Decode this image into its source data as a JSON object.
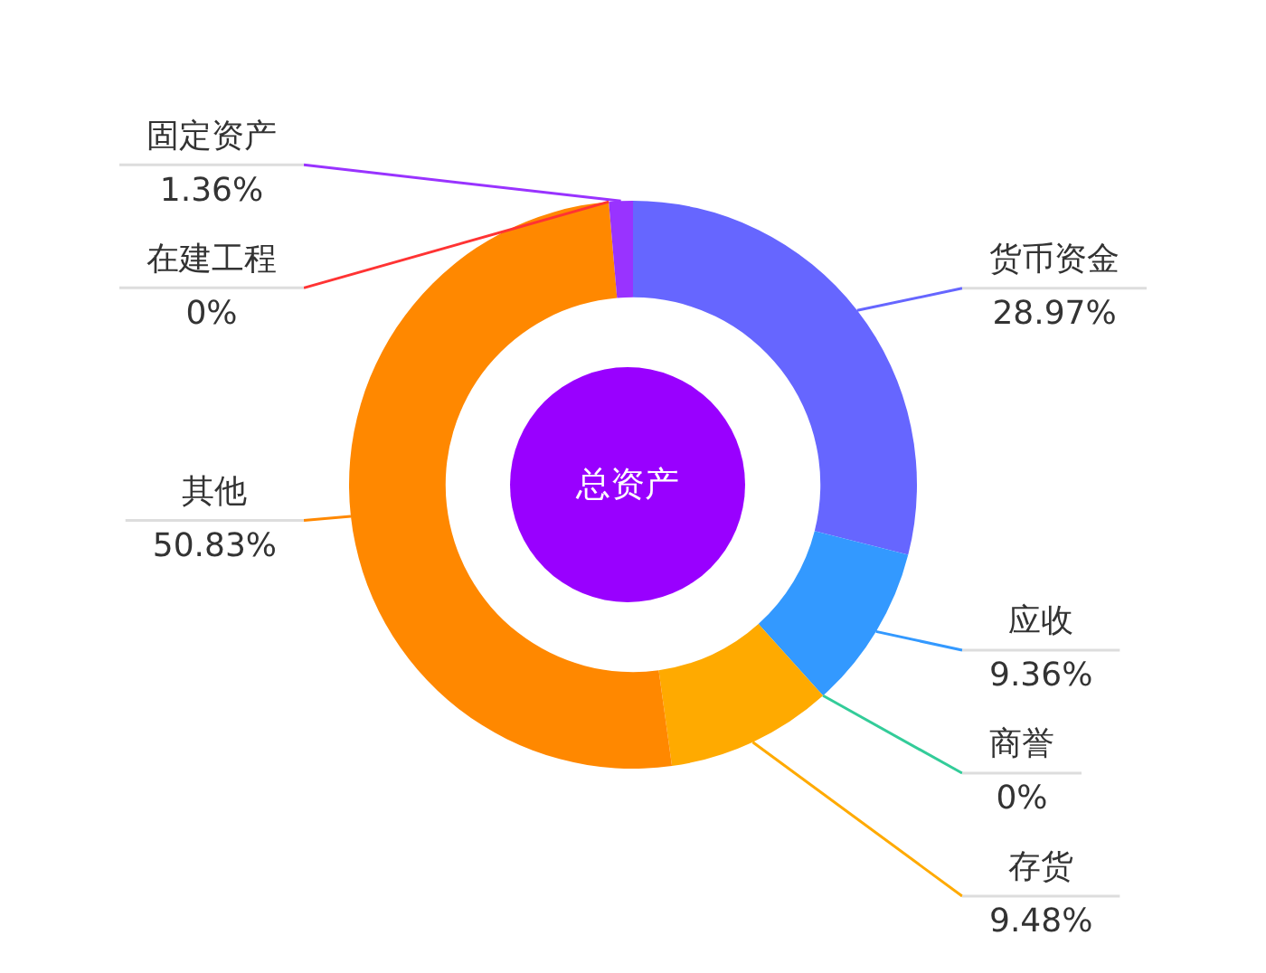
{
  "chart_data": {
    "type": "donut",
    "title": "总资产",
    "categories": [
      "货币资金",
      "应收",
      "商誉",
      "存货",
      "其他",
      "在建工程",
      "固定资产"
    ],
    "values": [
      28.97,
      9.36,
      0,
      9.48,
      50.83,
      0,
      1.36
    ],
    "colors": [
      "#6666ff",
      "#3399ff",
      "#33cc99",
      "#ffaa00",
      "#ff8800",
      "#ff3333",
      "#9933ff"
    ],
    "value_labels": [
      "28.97%",
      "9.36%",
      "0%",
      "9.48%",
      "50.83%",
      "0%",
      "1.36%"
    ]
  }
}
